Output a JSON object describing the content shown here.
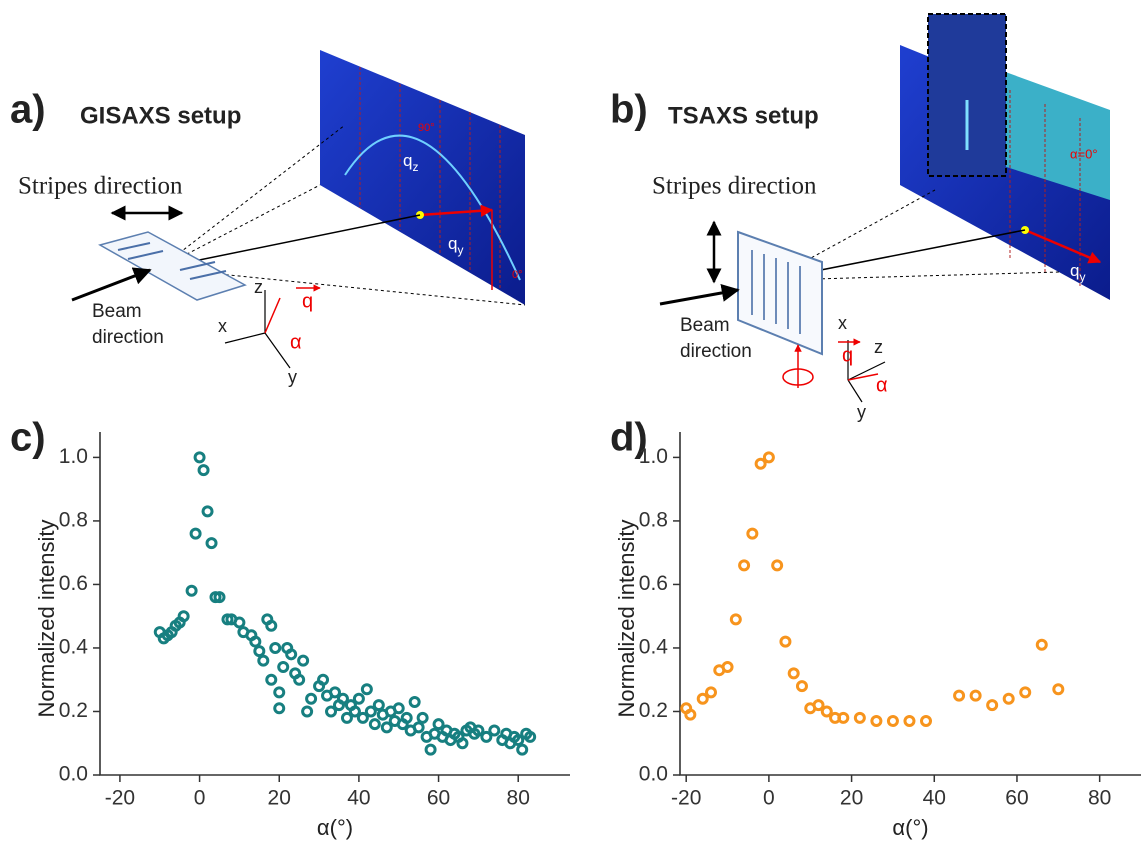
{
  "panel_a": {
    "label": "a)",
    "title": "GISAXS setup",
    "stripes": "Stripes direction",
    "beam_lines": [
      "Beam",
      "direction"
    ],
    "axis_x": "x",
    "axis_y": "y",
    "axis_z": "z",
    "vector_q": "q",
    "angle": "α",
    "detector": {
      "qz": [
        "q",
        "z"
      ],
      "qy": [
        "q",
        "y"
      ],
      "top_angle": "90°",
      "zero_angle": "0°"
    }
  },
  "panel_b": {
    "label": "b)",
    "title": "TSAXS setup",
    "stripes": "Stripes direction",
    "beam_lines": [
      "Beam",
      "direction"
    ],
    "axis_x": "x",
    "axis_y": "y",
    "axis_z": "z",
    "vector_q": "q",
    "angle": "α",
    "detector": {
      "qy": [
        "q",
        "y"
      ],
      "zero_angle": "α=0°"
    }
  },
  "panel_c": {
    "label": "c)"
  },
  "panel_d": {
    "label": "d)"
  },
  "chart_data": [
    {
      "type": "scatter",
      "x_label": "α(°)",
      "y_label": "Normalized intensity",
      "color": "#177f80",
      "x": [
        -10,
        -9,
        -8,
        -7,
        -6,
        -5,
        -4,
        -2,
        -1,
        0,
        1,
        2,
        3,
        4,
        5,
        7,
        8,
        10,
        11,
        13,
        14,
        15,
        16,
        17,
        18,
        18,
        19,
        20,
        20,
        21,
        22,
        23,
        24,
        25,
        26,
        27,
        28,
        30,
        31,
        32,
        33,
        34,
        35,
        36,
        37,
        38,
        39,
        40,
        41,
        42,
        43,
        44,
        45,
        46,
        47,
        48,
        49,
        50,
        51,
        52,
        53,
        54,
        55,
        56,
        57,
        58,
        59,
        60,
        61,
        62,
        63,
        64,
        65,
        66,
        67,
        68,
        69,
        70,
        72,
        74,
        76,
        77,
        78,
        79,
        80,
        81,
        82,
        83
      ],
      "values": [
        0.45,
        0.43,
        0.44,
        0.45,
        0.47,
        0.48,
        0.5,
        0.58,
        0.76,
        1.0,
        0.96,
        0.83,
        0.73,
        0.56,
        0.56,
        0.49,
        0.49,
        0.48,
        0.45,
        0.44,
        0.42,
        0.39,
        0.36,
        0.49,
        0.47,
        0.3,
        0.4,
        0.21,
        0.26,
        0.34,
        0.4,
        0.38,
        0.32,
        0.3,
        0.36,
        0.2,
        0.24,
        0.28,
        0.3,
        0.25,
        0.2,
        0.26,
        0.22,
        0.24,
        0.18,
        0.22,
        0.2,
        0.24,
        0.18,
        0.27,
        0.2,
        0.16,
        0.22,
        0.19,
        0.15,
        0.2,
        0.17,
        0.21,
        0.16,
        0.18,
        0.14,
        0.23,
        0.15,
        0.18,
        0.12,
        0.08,
        0.13,
        0.16,
        0.12,
        0.14,
        0.11,
        0.13,
        0.12,
        0.1,
        0.14,
        0.15,
        0.13,
        0.14,
        0.12,
        0.14,
        0.11,
        0.13,
        0.1,
        0.12,
        0.11,
        0.08,
        0.13,
        0.12
      ],
      "xlim": [
        -25,
        93
      ],
      "ylim": [
        0,
        1.08
      ],
      "xticks": [
        -20,
        0,
        20,
        40,
        60,
        80
      ],
      "yticks": [
        {
          "value": 0,
          "label": "0.0"
        },
        0.2,
        0.4,
        0.6,
        0.8,
        {
          "value": 1,
          "label": "1.0"
        }
      ]
    },
    {
      "type": "scatter",
      "x_label": "α(°)",
      "y_label": "Normalized intensity",
      "color": "#f7941d",
      "x": [
        -20,
        -19,
        -16,
        -14,
        -12,
        -10,
        -8,
        -6,
        -4,
        -2,
        0,
        2,
        4,
        6,
        8,
        10,
        12,
        14,
        16,
        18,
        22,
        26,
        30,
        34,
        38,
        46,
        50,
        54,
        58,
        62,
        66,
        70
      ],
      "values": [
        0.21,
        0.19,
        0.24,
        0.26,
        0.33,
        0.34,
        0.49,
        0.66,
        0.76,
        0.98,
        1.0,
        0.66,
        0.42,
        0.32,
        0.28,
        0.21,
        0.22,
        0.2,
        0.18,
        0.18,
        0.18,
        0.17,
        0.17,
        0.17,
        0.17,
        0.25,
        0.25,
        0.22,
        0.24,
        0.26,
        0.41,
        0.27
      ],
      "xlim": [
        -21.5,
        90
      ],
      "ylim": [
        0,
        1.08
      ],
      "xticks": [
        -20,
        0,
        20,
        40,
        60,
        80
      ],
      "yticks": [
        {
          "value": 0,
          "label": "0.0"
        },
        0.2,
        0.4,
        0.6,
        0.8,
        {
          "value": 1,
          "label": "1.0"
        }
      ]
    }
  ]
}
